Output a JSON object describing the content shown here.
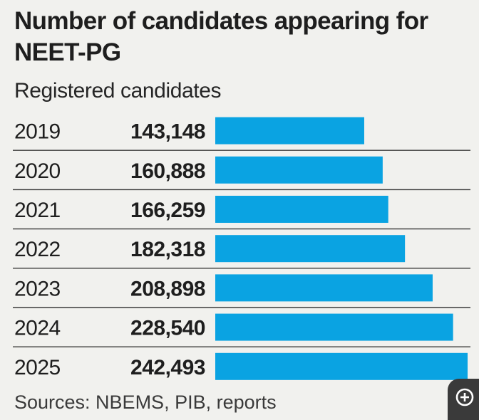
{
  "chart_data": {
    "type": "bar",
    "orientation": "horizontal",
    "title": "Number of candidates appearing for NEET-PG",
    "subtitle": "Registered candidates",
    "categories": [
      "2019",
      "2020",
      "2021",
      "2022",
      "2023",
      "2024",
      "2025"
    ],
    "values": [
      143148,
      160888,
      166259,
      182318,
      208898,
      228540,
      242493
    ],
    "value_labels": [
      "143,148",
      "160,888",
      "166,259",
      "182,318",
      "208,898",
      "228,540",
      "242,493"
    ],
    "source": "Sources: NBEMS, PIB, reports",
    "bar_color": "#0aa3e2",
    "grid": false,
    "legend": "none"
  },
  "zoom_button": {
    "icon": "zoom-in-icon"
  }
}
